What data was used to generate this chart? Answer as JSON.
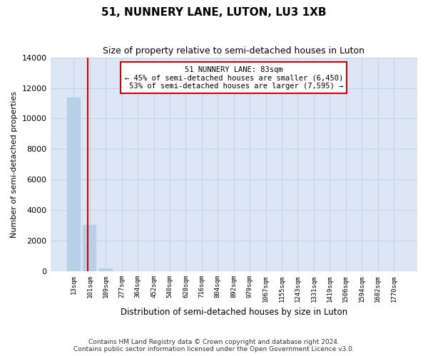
{
  "title": "51, NUNNERY LANE, LUTON, LU3 1XB",
  "subtitle": "Size of property relative to semi-detached houses in Luton",
  "xlabel": "Distribution of semi-detached houses by size in Luton",
  "ylabel": "Number of semi-detached properties",
  "categories": [
    "13sqm",
    "101sqm",
    "189sqm",
    "277sqm",
    "364sqm",
    "452sqm",
    "540sqm",
    "628sqm",
    "716sqm",
    "804sqm",
    "892sqm",
    "979sqm",
    "1067sqm",
    "1155sqm",
    "1243sqm",
    "1331sqm",
    "1419sqm",
    "1506sqm",
    "1594sqm",
    "1682sqm",
    "1770sqm"
  ],
  "bar_heights": [
    11350,
    3050,
    200,
    0,
    0,
    0,
    0,
    0,
    0,
    0,
    0,
    0,
    0,
    0,
    0,
    0,
    0,
    0,
    0,
    0,
    0
  ],
  "bar_color": "#b8cfe8",
  "bar_edge_color": "#b8cfe8",
  "grid_color": "#c8d4e8",
  "background_color": "#dce6f5",
  "ylim": [
    0,
    14000
  ],
  "yticks": [
    0,
    2000,
    4000,
    6000,
    8000,
    10000,
    12000,
    14000
  ],
  "property_line_x": 0.85,
  "property_line_color": "#cc0000",
  "annotation_text": "51 NUNNERY LANE: 83sqm\n← 45% of semi-detached houses are smaller (6,450)\n 53% of semi-detached houses are larger (7,595) →",
  "annotation_box_color": "#ffffff",
  "annotation_box_edge": "#cc0000",
  "footer_line1": "Contains HM Land Registry data © Crown copyright and database right 2024.",
  "footer_line2": "Contains public sector information licensed under the Open Government Licence v3.0."
}
